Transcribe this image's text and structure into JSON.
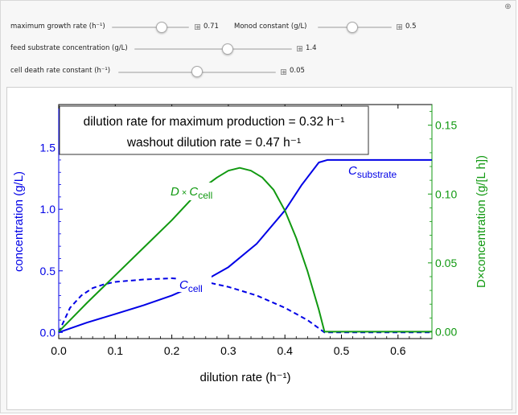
{
  "controls": {
    "max_growth_rate": {
      "label": "maximum growth rate (h⁻¹)",
      "value": "0.71"
    },
    "monod_constant": {
      "label": "Monod constant (g/L)",
      "value": "0.5"
    },
    "feed_substrate": {
      "label": "feed substrate concentration (g/L)",
      "value": "1.4"
    },
    "cell_death": {
      "label": "cell death rate constant (h⁻¹)",
      "value": "0.05"
    }
  },
  "legend": {
    "line1": "dilution rate for maximum production = 0.32 h⁻¹",
    "line2": "washout dilution rate = 0.47 h⁻¹"
  },
  "curve_labels": {
    "substrate": "C",
    "substrate_sub": "substrate",
    "cell": "C",
    "cell_sub": "cell",
    "product_D": "D",
    "product_times": "×",
    "product_C": "C",
    "product_sub": "cell"
  },
  "axes": {
    "xlabel": "dilution rate (h⁻¹)",
    "ylabel_left": "concentration (g/L)",
    "ylabel_right": "D×concentration (g/[L h])"
  },
  "colors": {
    "substrate": "#0000e6",
    "cell": "#0000e6",
    "product": "#119911",
    "left_axis": "#0000e6",
    "right_axis": "#119911"
  },
  "chart_data": {
    "type": "line",
    "xlim": [
      0,
      0.66
    ],
    "ylim_left": [
      -0.05,
      1.85
    ],
    "ylim_right": [
      -0.005,
      0.165
    ],
    "x_ticks": [
      0.0,
      0.1,
      0.2,
      0.3,
      0.4,
      0.5,
      0.6
    ],
    "x_tick_labels": [
      "0.0",
      "0.1",
      "0.2",
      "0.3",
      "0.4",
      "0.5",
      "0.6"
    ],
    "y_left_ticks": [
      0.0,
      0.5,
      1.0,
      1.5
    ],
    "y_left_tick_labels": [
      "0.0",
      "0.5",
      "1.0",
      "1.5"
    ],
    "y_right_ticks": [
      0.0,
      0.05,
      0.1,
      0.15
    ],
    "y_right_tick_labels": [
      "0.00",
      "0.05",
      "0.10",
      "0.15"
    ],
    "washout_x": 0.47,
    "series": [
      {
        "name": "substrate",
        "axis": "left",
        "style": "solid",
        "x": [
          0.0,
          0.05,
          0.1,
          0.15,
          0.2,
          0.25,
          0.3,
          0.35,
          0.4,
          0.43,
          0.46,
          0.475,
          0.52,
          0.6,
          0.66
        ],
        "y": [
          0.0,
          0.08,
          0.15,
          0.22,
          0.3,
          0.4,
          0.53,
          0.72,
          0.99,
          1.2,
          1.38,
          1.4,
          1.4,
          1.4,
          1.4
        ]
      },
      {
        "name": "cell",
        "axis": "left",
        "style": "dashed",
        "x": [
          0.0,
          0.01,
          0.02,
          0.04,
          0.06,
          0.08,
          0.1,
          0.15,
          0.2,
          0.25,
          0.3,
          0.35,
          0.4,
          0.44,
          0.47,
          0.5,
          0.6,
          0.66
        ],
        "y": [
          0.0,
          0.1,
          0.2,
          0.3,
          0.36,
          0.39,
          0.41,
          0.43,
          0.44,
          0.42,
          0.37,
          0.3,
          0.2,
          0.1,
          0.0,
          0.0,
          0.0,
          0.0
        ]
      },
      {
        "name": "product",
        "axis": "right",
        "style": "solid",
        "x": [
          0.0,
          0.05,
          0.1,
          0.15,
          0.2,
          0.25,
          0.28,
          0.3,
          0.32,
          0.34,
          0.36,
          0.38,
          0.4,
          0.42,
          0.44,
          0.46,
          0.47,
          0.5,
          0.6,
          0.66
        ],
        "y": [
          0.0,
          0.021,
          0.041,
          0.061,
          0.081,
          0.103,
          0.112,
          0.117,
          0.119,
          0.117,
          0.112,
          0.103,
          0.088,
          0.068,
          0.044,
          0.016,
          0.0,
          0.0,
          0.0,
          0.0
        ]
      }
    ]
  }
}
